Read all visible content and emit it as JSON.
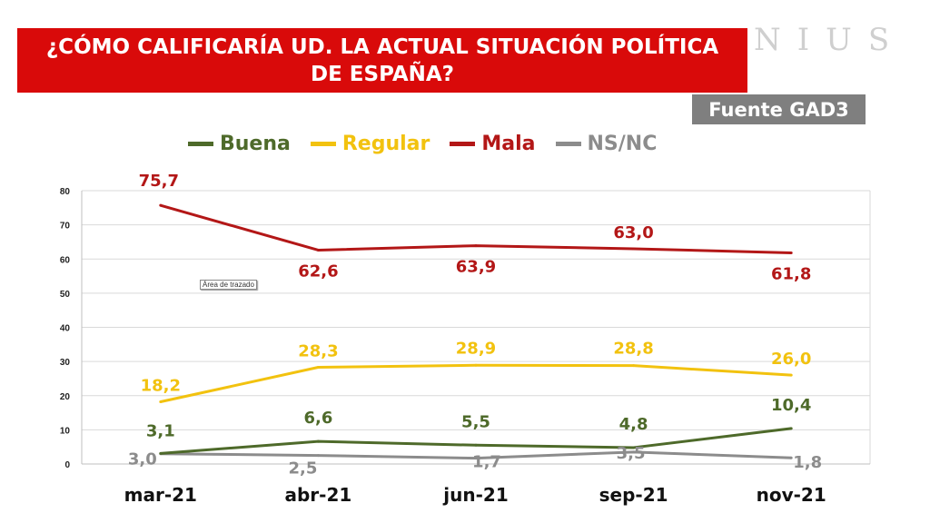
{
  "header": {
    "title": "¿CÓMO CALIFICARÍA UD. LA ACTUAL SITUACIÓN POLÍTICA DE ESPAÑA?",
    "brand_fragment": "NIUS",
    "source": "Fuente GAD3"
  },
  "tooltip": "Área de trazado",
  "colors": {
    "title_bg": "#d90a0a",
    "source_bg": "#7f7f7f",
    "Buena": "#4e6a2a",
    "Regular": "#f2c20f",
    "Mala": "#b31717",
    "NS/NC": "#8c8c8c"
  },
  "chart_data": {
    "type": "line",
    "title": "¿CÓMO CALIFICARÍA UD. LA ACTUAL SITUACIÓN POLÍTICA DE ESPAÑA?",
    "categories": [
      "mar-21",
      "abr-21",
      "jun-21",
      "sep-21",
      "nov-21"
    ],
    "ylim": [
      0,
      80
    ],
    "yticks": [
      "0",
      "10",
      "20",
      "30",
      "40",
      "50",
      "60",
      "70",
      "80"
    ],
    "grid": true,
    "legend_position": "top",
    "series": [
      {
        "name": "Buena",
        "values": [
          3.1,
          6.6,
          5.5,
          4.8,
          10.4
        ],
        "labels": [
          "3,1",
          "6,6",
          "5,5",
          "4,8",
          "10,4"
        ]
      },
      {
        "name": "Regular",
        "values": [
          18.2,
          28.3,
          28.9,
          28.8,
          26.0
        ],
        "labels": [
          "18,2",
          "28,3",
          "28,9",
          "28,8",
          "26,0"
        ]
      },
      {
        "name": "Mala",
        "values": [
          75.7,
          62.6,
          63.9,
          63.0,
          61.8
        ],
        "labels": [
          "75,7",
          "62,6",
          "63,9",
          "63,0",
          "61,8"
        ]
      },
      {
        "name": "NS/NC",
        "values": [
          3.0,
          2.5,
          1.7,
          3.5,
          1.8
        ],
        "labels": [
          "3,0",
          "2,5",
          "1,7",
          "3,5",
          "1,8"
        ]
      }
    ]
  }
}
